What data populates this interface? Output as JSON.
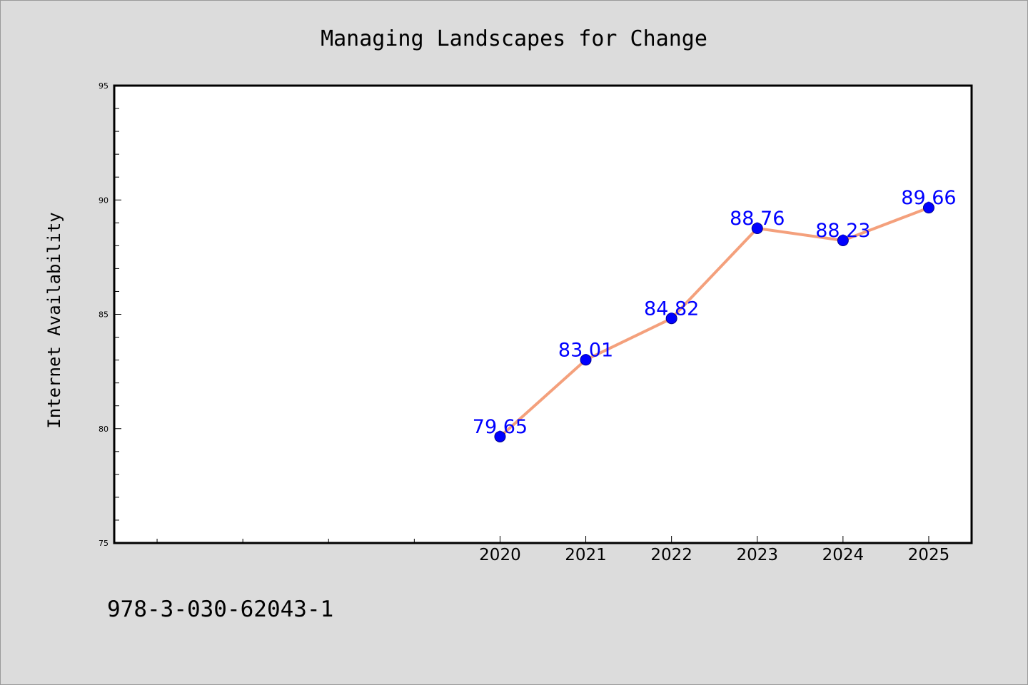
{
  "chart_data": {
    "type": "line",
    "title": "Managing Landscapes for Change",
    "xlabel": "",
    "ylabel": "Internet Availability",
    "x": [
      2020,
      2021,
      2022,
      2023,
      2024,
      2025
    ],
    "x_tick_labels": [
      "2020",
      "2021",
      "2022",
      "2023",
      "2024",
      "2025"
    ],
    "x_minor_ticks": [
      2016,
      2017,
      2018,
      2019
    ],
    "xlim": [
      2015.5,
      2025.5
    ],
    "series": [
      {
        "values": [
          79.65,
          83.01,
          84.82,
          88.76,
          88.23,
          89.66
        ],
        "data_labels": [
          "79.65",
          "83.01",
          "84.82",
          "88.76",
          "88.23",
          "89.66"
        ]
      }
    ],
    "ylim": [
      75,
      95
    ],
    "y_tick_values": [
      75,
      80,
      85,
      90,
      95
    ],
    "y_tick_labels": [
      "75",
      "80",
      "85",
      "90",
      "95"
    ],
    "y_minor_step": 1,
    "grid": false,
    "legend": "none",
    "colors": {
      "line": "#f4a07c",
      "marker": "#0000ff",
      "marker_edge": "#00008b",
      "data_label": "#0000ff",
      "plot_background": "#ffffff",
      "page_background": "#dcdcdc"
    }
  },
  "footer": {
    "isbn": "978-3-030-62043-1"
  }
}
